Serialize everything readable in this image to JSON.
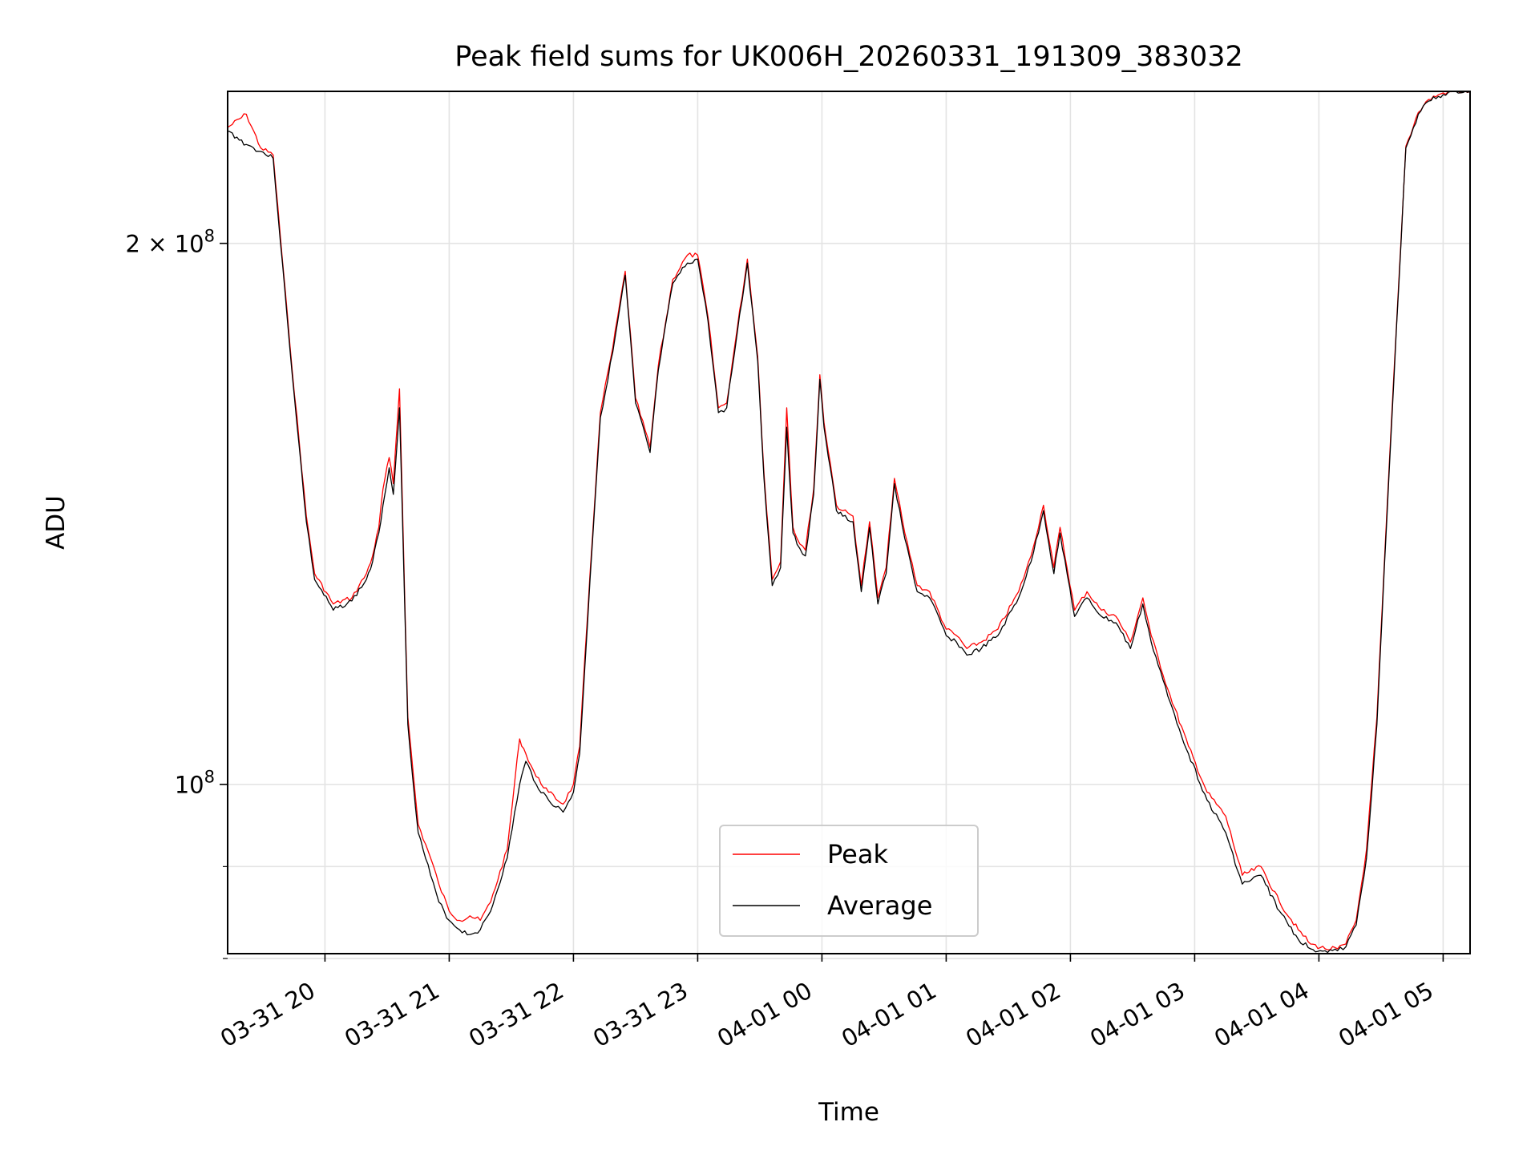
{
  "chart_data": {
    "type": "line",
    "title": "Peak field sums for UK006H_20260331_191309_383032",
    "xlabel": "Time",
    "ylabel": "ADU",
    "yscale": "log",
    "xlim": [
      "2026-03-31 19:13",
      "2026-04-01 05:13"
    ],
    "ylim": [
      80500000,
      243000000
    ],
    "grid": true,
    "legend": {
      "placement": "lower-center",
      "entries": [
        "Peak",
        "Average"
      ]
    },
    "colors": {
      "Peak": "#ff0000",
      "Average": "#000000"
    },
    "x_ticks": [
      "03-31 20",
      "03-31 21",
      "03-31 22",
      "03-31 23",
      "04-01 00",
      "04-01 01",
      "04-01 02",
      "04-01 03",
      "04-01 04",
      "04-01 05"
    ],
    "y_ticks": [
      {
        "value": 100000000,
        "mantissa": "",
        "base": "10",
        "exp": "8"
      },
      {
        "value": 200000000,
        "mantissa": "2 × ",
        "base": "10",
        "exp": "8"
      }
    ],
    "y_minor_ticks": [
      80000000,
      90000000
    ],
    "series": [
      {
        "name": "Average",
        "x": [
          "2026-03-31 19:13",
          "2026-03-31 19:22",
          "2026-03-31 19:29",
          "2026-03-31 19:35",
          "2026-03-31 19:43",
          "2026-03-31 19:51",
          "2026-03-31 19:55",
          "2026-03-31 20:04",
          "2026-03-31 20:13",
          "2026-03-31 20:20",
          "2026-03-31 20:23",
          "2026-03-31 20:26",
          "2026-03-31 20:28",
          "2026-03-31 20:31",
          "2026-03-31 20:33",
          "2026-03-31 20:36",
          "2026-03-31 20:40",
          "2026-03-31 20:45",
          "2026-03-31 20:51",
          "2026-03-31 20:55",
          "2026-03-31 21:00",
          "2026-03-31 21:05",
          "2026-03-31 21:10",
          "2026-03-31 21:15",
          "2026-03-31 21:20",
          "2026-03-31 21:28",
          "2026-03-31 21:34",
          "2026-03-31 21:37",
          "2026-03-31 21:42",
          "2026-03-31 21:48",
          "2026-03-31 21:55",
          "2026-03-31 22:00",
          "2026-03-31 22:03",
          "2026-03-31 22:08",
          "2026-03-31 22:13",
          "2026-03-31 22:19",
          "2026-03-31 22:25",
          "2026-03-31 22:30",
          "2026-03-31 22:37",
          "2026-03-31 22:41",
          "2026-03-31 22:48",
          "2026-03-31 22:55",
          "2026-03-31 23:00",
          "2026-03-31 23:05",
          "2026-03-31 23:10",
          "2026-03-31 23:14",
          "2026-03-31 23:19",
          "2026-03-31 23:24",
          "2026-03-31 23:29",
          "2026-03-31 23:32",
          "2026-03-31 23:36",
          "2026-03-31 23:40",
          "2026-03-31 23:43",
          "2026-03-31 23:46",
          "2026-03-31 23:48",
          "2026-03-31 23:52",
          "2026-03-31 23:56",
          "2026-03-31 23:59",
          "2026-04-01 00:01",
          "2026-04-01 00:04",
          "2026-04-01 00:07",
          "2026-04-01 00:10",
          "2026-04-01 00:15",
          "2026-04-01 00:19",
          "2026-04-01 00:23",
          "2026-04-01 00:27",
          "2026-04-01 00:31",
          "2026-04-01 00:35",
          "2026-04-01 00:40",
          "2026-04-01 00:46",
          "2026-04-01 00:52",
          "2026-04-01 01:00",
          "2026-04-01 01:05",
          "2026-04-01 01:10",
          "2026-04-01 01:17",
          "2026-04-01 01:25",
          "2026-04-01 01:35",
          "2026-04-01 01:41",
          "2026-04-01 01:47",
          "2026-04-01 01:52",
          "2026-04-01 01:55",
          "2026-04-01 02:02",
          "2026-04-01 02:08",
          "2026-04-01 02:15",
          "2026-04-01 02:22",
          "2026-04-01 02:29",
          "2026-04-01 02:35",
          "2026-04-01 02:39",
          "2026-04-01 02:47",
          "2026-04-01 02:57",
          "2026-04-01 03:06",
          "2026-04-01 03:15",
          "2026-04-01 03:23",
          "2026-04-01 03:32",
          "2026-04-01 03:41",
          "2026-04-01 03:50",
          "2026-04-01 03:56",
          "2026-04-01 04:03",
          "2026-04-01 04:09",
          "2026-04-01 04:13",
          "2026-04-01 04:18",
          "2026-04-01 04:23",
          "2026-04-01 04:28",
          "2026-04-01 04:34",
          "2026-04-01 04:42",
          "2026-04-01 04:48",
          "2026-04-01 04:53",
          "2026-04-01 05:00",
          "2026-04-01 05:05",
          "2026-04-01 05:13"
        ],
        "values": [
          231000000,
          227000000,
          225000000,
          223000000,
          175000000,
          140000000,
          130000000,
          125000000,
          126500000,
          130000000,
          133000000,
          138000000,
          143000000,
          150000000,
          145000000,
          162000000,
          108000000,
          94000000,
          89000000,
          86000000,
          84000000,
          83000000,
          82500000,
          83000000,
          85000000,
          91000000,
          100000000,
          103000000,
          100000000,
          98000000,
          96500000,
          99000000,
          104000000,
          130000000,
          160000000,
          174000000,
          192000000,
          163000000,
          153000000,
          170000000,
          190000000,
          195000000,
          196000000,
          181000000,
          161000000,
          162000000,
          178000000,
          195000000,
          172000000,
          148000000,
          129000000,
          132000000,
          158000000,
          138000000,
          136000000,
          134000000,
          145000000,
          168000000,
          158000000,
          150000000,
          142000000,
          141000000,
          140000000,
          128000000,
          139000000,
          126000000,
          131000000,
          147000000,
          137000000,
          128000000,
          127000000,
          121000000,
          120000000,
          118000000,
          119000000,
          121000000,
          127000000,
          133000000,
          142000000,
          131000000,
          138000000,
          124000000,
          127000000,
          124000000,
          123000000,
          119000000,
          126000000,
          120000000,
          112000000,
          104000000,
          98000000,
          94000000,
          88000000,
          89000000,
          85000000,
          82000000,
          81000000,
          80800000,
          80800000,
          81200000,
          83500000,
          91000000,
          108000000,
          150000000,
          226000000,
          236000000,
          240000000,
          242000000,
          243000000,
          243000000
        ]
      },
      {
        "name": "Peak",
        "x": [
          "2026-03-31 19:13",
          "2026-03-31 19:22",
          "2026-03-31 19:29",
          "2026-03-31 19:35",
          "2026-03-31 19:43",
          "2026-03-31 19:51",
          "2026-03-31 19:55",
          "2026-03-31 20:04",
          "2026-03-31 20:13",
          "2026-03-31 20:20",
          "2026-03-31 20:23",
          "2026-03-31 20:26",
          "2026-03-31 20:28",
          "2026-03-31 20:31",
          "2026-03-31 20:33",
          "2026-03-31 20:36",
          "2026-03-31 20:40",
          "2026-03-31 20:45",
          "2026-03-31 20:51",
          "2026-03-31 20:55",
          "2026-03-31 21:00",
          "2026-03-31 21:05",
          "2026-03-31 21:10",
          "2026-03-31 21:15",
          "2026-03-31 21:20",
          "2026-03-31 21:28",
          "2026-03-31 21:34",
          "2026-03-31 21:37",
          "2026-03-31 21:42",
          "2026-03-31 21:48",
          "2026-03-31 21:55",
          "2026-03-31 22:00",
          "2026-03-31 22:03",
          "2026-03-31 22:08",
          "2026-03-31 22:13",
          "2026-03-31 22:19",
          "2026-03-31 22:25",
          "2026-03-31 22:30",
          "2026-03-31 22:37",
          "2026-03-31 22:41",
          "2026-03-31 22:48",
          "2026-03-31 22:55",
          "2026-03-31 23:00",
          "2026-03-31 23:05",
          "2026-03-31 23:10",
          "2026-03-31 23:14",
          "2026-03-31 23:19",
          "2026-03-31 23:24",
          "2026-03-31 23:29",
          "2026-03-31 23:32",
          "2026-03-31 23:36",
          "2026-03-31 23:40",
          "2026-03-31 23:43",
          "2026-03-31 23:46",
          "2026-03-31 23:48",
          "2026-03-31 23:52",
          "2026-03-31 23:56",
          "2026-03-31 23:59",
          "2026-04-01 00:01",
          "2026-04-01 00:04",
          "2026-04-01 00:07",
          "2026-04-01 00:10",
          "2026-04-01 00:15",
          "2026-04-01 00:19",
          "2026-04-01 00:23",
          "2026-04-01 00:27",
          "2026-04-01 00:31",
          "2026-04-01 00:35",
          "2026-04-01 00:40",
          "2026-04-01 00:46",
          "2026-04-01 00:52",
          "2026-04-01 01:00",
          "2026-04-01 01:05",
          "2026-04-01 01:10",
          "2026-04-01 01:17",
          "2026-04-01 01:25",
          "2026-04-01 01:35",
          "2026-04-01 01:41",
          "2026-04-01 01:47",
          "2026-04-01 01:52",
          "2026-04-01 01:55",
          "2026-04-01 02:02",
          "2026-04-01 02:08",
          "2026-04-01 02:15",
          "2026-04-01 02:22",
          "2026-04-01 02:29",
          "2026-04-01 02:35",
          "2026-04-01 02:39",
          "2026-04-01 02:47",
          "2026-04-01 02:57",
          "2026-04-01 03:06",
          "2026-04-01 03:15",
          "2026-04-01 03:23",
          "2026-04-01 03:32",
          "2026-04-01 03:41",
          "2026-04-01 03:50",
          "2026-04-01 03:56",
          "2026-04-01 04:03",
          "2026-04-01 04:09",
          "2026-04-01 04:13",
          "2026-04-01 04:18",
          "2026-04-01 04:23",
          "2026-04-01 04:28",
          "2026-04-01 04:34",
          "2026-04-01 04:42",
          "2026-04-01 04:48",
          "2026-04-01 04:53",
          "2026-04-01 05:00",
          "2026-04-01 05:05",
          "2026-04-01 05:13"
        ],
        "values": [
          232000000,
          236000000,
          226000000,
          224000000,
          176000000,
          141000000,
          131000000,
          126000000,
          127000000,
          131000000,
          134000000,
          139000000,
          146000000,
          152000000,
          147000000,
          166000000,
          109000000,
          95000000,
          91000000,
          88000000,
          85000000,
          84000000,
          84500000,
          84000000,
          86000000,
          92000000,
          106000000,
          104000000,
          101000000,
          99000000,
          97500000,
          100000000,
          105000000,
          131000000,
          161000000,
          175000000,
          193000000,
          164000000,
          154000000,
          171000000,
          191000000,
          197000000,
          197000000,
          182000000,
          162000000,
          163000000,
          179000000,
          196000000,
          173000000,
          149000000,
          130000000,
          133000000,
          162000000,
          139000000,
          137000000,
          135000000,
          146000000,
          169000000,
          159000000,
          151000000,
          143000000,
          142000000,
          141000000,
          129000000,
          140000000,
          127000000,
          132000000,
          148000000,
          138000000,
          129000000,
          128000000,
          122000000,
          121000000,
          119000000,
          120000000,
          122000000,
          128000000,
          134000000,
          143000000,
          132000000,
          139000000,
          125000000,
          128000000,
          125000000,
          124000000,
          120000000,
          127000000,
          121000000,
          113000000,
          105000000,
          99000000,
          96000000,
          89000000,
          90000000,
          86000000,
          83000000,
          81500000,
          81000000,
          81000000,
          81500000,
          84000000,
          92000000,
          109000000,
          151000000,
          226500000,
          236500000,
          240500000,
          242500000,
          243000000,
          243000000
        ]
      }
    ]
  }
}
